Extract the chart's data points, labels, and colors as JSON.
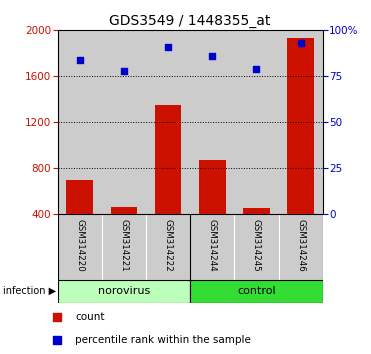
{
  "title": "GDS3549 / 1448355_at",
  "categories": [
    "GSM314220",
    "GSM314221",
    "GSM314222",
    "GSM314244",
    "GSM314245",
    "GSM314246"
  ],
  "counts": [
    700,
    460,
    1350,
    870,
    455,
    1930
  ],
  "percentiles": [
    84,
    78,
    91,
    86,
    79,
    93
  ],
  "bar_color": "#cc1100",
  "dot_color": "#0000cc",
  "ylim_left": [
    400,
    2000
  ],
  "ylim_right": [
    0,
    100
  ],
  "yticks_left": [
    400,
    800,
    1200,
    1600,
    2000
  ],
  "yticks_right": [
    0,
    25,
    50,
    75,
    100
  ],
  "group_labels": [
    "norovirus",
    "control"
  ],
  "norovirus_color": "#bbffbb",
  "control_color": "#33dd33",
  "annotation_label": "infection",
  "legend_items": [
    "count",
    "percentile rank within the sample"
  ],
  "legend_colors": [
    "#cc1100",
    "#0000cc"
  ],
  "left_tick_color": "#cc1100",
  "right_tick_color": "#0000cc",
  "background_color": "#ffffff",
  "tick_area_color": "#cccccc",
  "dotted_line_yticks": [
    800,
    1200,
    1600
  ],
  "bar_width": 0.6
}
